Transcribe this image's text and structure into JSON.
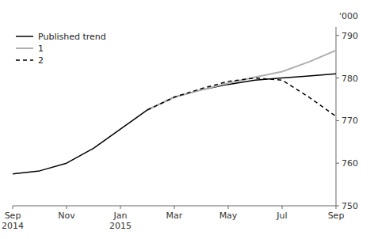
{
  "chart_data": {
    "type": "line",
    "y_label": "'000",
    "categories": [
      "Sep\n2014",
      null,
      "Nov",
      null,
      "Jan\n2015",
      null,
      "Mar",
      null,
      "May",
      null,
      "Jul",
      null,
      "Sep"
    ],
    "series": [
      {
        "name": "Published trend",
        "color": "#000000",
        "line_style": "solid",
        "values": [
          757.5,
          758.2,
          760.0,
          763.5,
          768.0,
          772.5,
          775.5,
          777.2,
          778.5,
          779.5,
          780.0,
          780.5,
          781.0
        ]
      },
      {
        "name": "1",
        "color": "#b0b0b0",
        "line_style": "solid",
        "values": [
          null,
          null,
          null,
          null,
          null,
          772.5,
          775.5,
          777.2,
          778.8,
          780.2,
          781.5,
          783.8,
          786.5
        ]
      },
      {
        "name": "2",
        "color": "#000000",
        "line_style": "dashed",
        "values": [
          null,
          null,
          null,
          null,
          null,
          772.5,
          775.5,
          777.5,
          779.2,
          780.0,
          779.5,
          775.5,
          771.0
        ]
      }
    ],
    "ylim": [
      750,
      792
    ],
    "yticks": [
      750,
      760,
      770,
      780,
      790
    ],
    "grid": false,
    "legend": "upper left"
  }
}
